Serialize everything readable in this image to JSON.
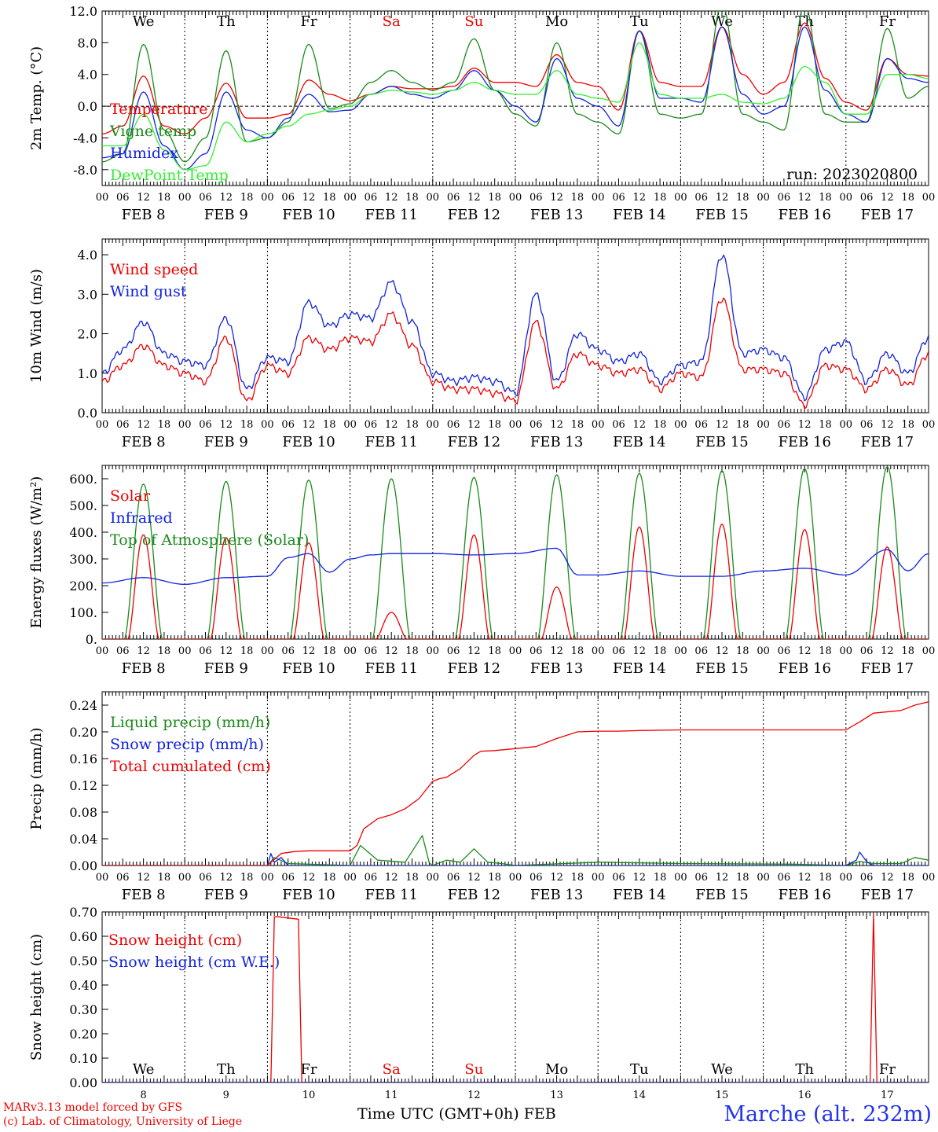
{
  "footer": {
    "credit_line1": "MARv3.13 model forced by GFS",
    "credit_line2": "(c) Lab. of Climatology, University of Liege",
    "xlabel": "Time UTC (GMT+0h) FEB",
    "station": "Marche (alt. 232m)"
  },
  "run_label": "run: 2023020800",
  "day_names": [
    "We",
    "Th",
    "Fr",
    "Sa",
    "Su",
    "Mo",
    "Tu",
    "We",
    "Th",
    "Fr"
  ],
  "day_colors": [
    "#000000",
    "#000000",
    "#000000",
    "#ee0000",
    "#ee0000",
    "#000000",
    "#000000",
    "#000000",
    "#000000",
    "#000000"
  ],
  "date_labels": [
    "FEB  8",
    "FEB  9",
    "FEB 10",
    "FEB 11",
    "FEB 12",
    "FEB 13",
    "FEB 14",
    "FEB 15",
    "FEB 16",
    "FEB 17"
  ],
  "bottom_day_numbers": [
    "8",
    "9",
    "10",
    "11",
    "12",
    "13",
    "14",
    "15",
    "16",
    "17"
  ],
  "hour_ticks": [
    "00",
    "06",
    "12",
    "18"
  ],
  "colors": {
    "red": "#ee0000",
    "darkgreen": "#1a8a1a",
    "blue": "#1122dd",
    "lightgreen": "#33ee33"
  },
  "chart_data": [
    {
      "type": "line",
      "ylabel": "2m Temp. (°C)",
      "ylim": [
        -10,
        12
      ],
      "yticks": [
        "12.0",
        "8.0",
        "4.0",
        "0.0",
        "-4.0",
        "-8.0"
      ],
      "ytick_values": [
        12,
        8,
        4,
        0,
        -4,
        -8
      ],
      "x_hours": [
        0,
        6,
        12,
        18,
        24,
        30,
        36,
        42,
        48,
        54,
        60,
        66,
        72,
        78,
        84,
        90,
        96,
        102,
        108,
        114,
        120,
        126,
        132,
        138,
        144,
        150,
        156,
        162,
        168,
        174,
        180,
        186,
        192,
        198,
        204,
        210,
        216,
        222,
        228,
        234,
        240
      ],
      "series": [
        {
          "name": "Temperature",
          "color": "#ee0000",
          "values": [
            -3.5,
            -2.5,
            3.8,
            -2.5,
            -3.5,
            -1.5,
            2.9,
            -1.5,
            -1.5,
            -1,
            3.3,
            1.5,
            0.7,
            1.5,
            2.5,
            2.2,
            2.2,
            2.5,
            4.8,
            3,
            3,
            2.5,
            6.5,
            3,
            2.5,
            -0.5,
            9.5,
            3,
            2.5,
            2.5,
            10,
            4,
            1.5,
            3,
            10.5,
            3.5,
            0.5,
            -0.5,
            6,
            4,
            3.8
          ]
        },
        {
          "name": "Vigne temp",
          "color": "#1a8a1a",
          "values": [
            -7,
            -6,
            7.8,
            -3,
            -7,
            -4,
            7,
            -4.5,
            -4,
            -2,
            7.8,
            -0.3,
            0.3,
            3,
            4.5,
            3,
            2,
            3,
            8.5,
            2,
            -1,
            -2.5,
            8,
            -1,
            -2,
            -3.5,
            9.5,
            -1,
            -1.5,
            -1,
            13,
            -1,
            -2,
            -3,
            13,
            -1,
            -2,
            -2,
            9.8,
            1,
            2.5
          ]
        },
        {
          "name": "Humidex",
          "color": "#1122dd",
          "values": [
            -6.5,
            -6,
            1.8,
            -5,
            -8,
            -6,
            1.8,
            -3,
            -4,
            -1.5,
            1.5,
            -0.7,
            -0.5,
            1.5,
            2.5,
            1.5,
            1,
            2,
            4.5,
            2,
            0,
            -2,
            6,
            1,
            0,
            -2.5,
            9.5,
            1,
            1,
            0.5,
            10,
            1.5,
            -1,
            0,
            10,
            2,
            -1,
            -2,
            6,
            3.5,
            3
          ]
        },
        {
          "name": "DewPoint Temp",
          "color": "#33ee33",
          "values": [
            -5,
            -5,
            -1,
            -5.5,
            -8,
            -7.5,
            -2,
            -4.5,
            -3.5,
            -2.5,
            -1,
            -0.5,
            0,
            1.5,
            2,
            1.8,
            1.5,
            2,
            3,
            2,
            1.5,
            1.5,
            4.5,
            1.5,
            1,
            0.5,
            8,
            1.5,
            1,
            1,
            1.5,
            0.5,
            0.3,
            1,
            5,
            3,
            -1,
            -1,
            4,
            4,
            3.5
          ]
        }
      ]
    },
    {
      "type": "line",
      "ylabel": "10m Wind (m/s)",
      "ylim": [
        0,
        4.4
      ],
      "yticks": [
        "4.0",
        "3.0",
        "2.0",
        "1.0",
        "0.0"
      ],
      "ytick_values": [
        4,
        3,
        2,
        1,
        0
      ],
      "x_hours": [
        0,
        6,
        12,
        18,
        24,
        30,
        36,
        42,
        48,
        54,
        60,
        66,
        72,
        78,
        84,
        90,
        96,
        102,
        108,
        114,
        120,
        126,
        132,
        138,
        144,
        150,
        156,
        162,
        168,
        174,
        180,
        186,
        192,
        198,
        204,
        210,
        216,
        222,
        228,
        234,
        240
      ],
      "series": [
        {
          "name": "Wind speed",
          "color": "#ee0000",
          "values": [
            0.8,
            1.2,
            1.7,
            1.2,
            1,
            0.8,
            1.9,
            0.3,
            1.2,
            1,
            1.9,
            1.6,
            1.9,
            1.8,
            2.5,
            1.7,
            0.8,
            0.6,
            0.6,
            0.5,
            0.3,
            2.3,
            0.6,
            1.5,
            1.2,
            1,
            1.1,
            0.6,
            1.0,
            0.9,
            2.9,
            1.1,
            1.1,
            1.0,
            0.2,
            1.2,
            1.1,
            0.6,
            1.1,
            0.7,
            1.5
          ]
        },
        {
          "name": "Wind gust",
          "color": "#1122dd",
          "values": [
            1.0,
            1.6,
            2.3,
            1.5,
            1.3,
            1.2,
            2.4,
            0.6,
            1.4,
            1.3,
            2.8,
            2.2,
            2.5,
            2.4,
            3.3,
            2.3,
            1.0,
            0.8,
            0.9,
            0.8,
            0.5,
            3.0,
            0.8,
            2.0,
            1.6,
            1.3,
            1.5,
            0.8,
            1.2,
            1.3,
            4.0,
            1.5,
            1.6,
            1.4,
            0.4,
            1.6,
            1.8,
            0.8,
            1.5,
            1.0,
            1.9
          ]
        }
      ]
    },
    {
      "type": "line",
      "ylabel": "Energy fluxes (W/m²)",
      "ylim": [
        0,
        650
      ],
      "yticks": [
        "600.",
        "500.",
        "400.",
        "300.",
        "200.",
        "100.",
        "0."
      ],
      "ytick_values": [
        600,
        500,
        400,
        300,
        200,
        100,
        0
      ],
      "day_peaks": {
        "solar": [
          390,
          380,
          360,
          100,
          390,
          195,
          420,
          430,
          410,
          345
        ],
        "toa": [
          580,
          590,
          595,
          600,
          605,
          615,
          620,
          630,
          638,
          645
        ]
      },
      "series": [
        {
          "name": "Solar",
          "color": "#ee0000"
        },
        {
          "name": "Infrared",
          "color": "#1122dd",
          "x_hours": [
            0,
            12,
            24,
            36,
            48,
            54,
            60,
            66,
            72,
            78,
            84,
            96,
            108,
            120,
            132,
            138,
            144,
            156,
            168,
            180,
            192,
            204,
            216,
            228,
            234,
            240
          ],
          "values": [
            210,
            230,
            205,
            230,
            235,
            305,
            320,
            250,
            300,
            315,
            320,
            320,
            315,
            320,
            340,
            240,
            240,
            255,
            235,
            235,
            255,
            265,
            240,
            335,
            255,
            320
          ]
        },
        {
          "name": "Top of Atmosphere (Solar)",
          "color": "#1a8a1a"
        }
      ]
    },
    {
      "type": "line",
      "ylabel": "Precip (mm/h)",
      "ylim": [
        0,
        0.26
      ],
      "yticks": [
        "0.24",
        "0.20",
        "0.16",
        "0.12",
        "0.08",
        "0.04",
        "0.00"
      ],
      "ytick_values": [
        0.24,
        0.2,
        0.16,
        0.12,
        0.08,
        0.04,
        0
      ],
      "series": [
        {
          "name": "Liquid precip (mm/h)",
          "color": "#1a8a1a",
          "x_hours": [
            0,
            48,
            50,
            54,
            72,
            75,
            80,
            88,
            93,
            95,
            96,
            100,
            104,
            108,
            112,
            116,
            120,
            144,
            168,
            200,
            216,
            220,
            224,
            232,
            236,
            240
          ],
          "values": [
            0,
            0,
            0.012,
            0.003,
            0,
            0.03,
            0.008,
            0.005,
            0.045,
            0.004,
            0,
            0.008,
            0.005,
            0.025,
            0.005,
            0.003,
            0,
            0.005,
            0.003,
            0.002,
            0,
            0.006,
            0.003,
            0.003,
            0.012,
            0.008
          ]
        },
        {
          "name": "Snow precip (mm/h)",
          "color": "#1122dd",
          "x_hours": [
            0,
            48,
            49,
            50,
            52,
            54,
            216,
            219,
            220,
            222,
            224,
            240
          ],
          "values": [
            0,
            0,
            0.018,
            0.005,
            0.012,
            0,
            0,
            0.008,
            0.02,
            0.006,
            0,
            0
          ]
        },
        {
          "name": "Total cumulated (cm)",
          "color": "#ee0000",
          "x_hours": [
            0,
            48,
            52,
            56,
            60,
            66,
            72,
            74,
            76,
            80,
            84,
            88,
            92,
            96,
            98,
            100,
            104,
            108,
            110,
            114,
            120,
            126,
            132,
            138,
            144,
            150,
            156,
            168,
            180,
            192,
            204,
            216,
            220,
            224,
            232,
            236,
            240
          ],
          "values": [
            0,
            0,
            0.018,
            0.021,
            0.022,
            0.022,
            0.022,
            0.03,
            0.055,
            0.07,
            0.076,
            0.085,
            0.1,
            0.126,
            0.13,
            0.132,
            0.145,
            0.165,
            0.171,
            0.172,
            0.175,
            0.178,
            0.19,
            0.2,
            0.201,
            0.201,
            0.202,
            0.203,
            0.203,
            0.203,
            0.203,
            0.203,
            0.215,
            0.228,
            0.232,
            0.24,
            0.245
          ]
        }
      ]
    },
    {
      "type": "line",
      "ylabel": "Snow height (cm)",
      "ylim": [
        0,
        0.7
      ],
      "yticks": [
        "0.70",
        "0.60",
        "0.50",
        "0.40",
        "0.30",
        "0.20",
        "0.10",
        "0.00"
      ],
      "ytick_values": [
        0.7,
        0.6,
        0.5,
        0.4,
        0.3,
        0.2,
        0.1,
        0
      ],
      "series": [
        {
          "name": "Snow height (cm)",
          "color": "#ee0000",
          "x_hours": [
            0,
            49,
            50,
            51,
            57,
            58,
            223,
            224,
            225,
            240
          ],
          "values": [
            0,
            0,
            0.68,
            0.68,
            0.67,
            0,
            0,
            0.69,
            0,
            0
          ]
        },
        {
          "name": "Snow height (cm W.E.)",
          "color": "#1122dd",
          "x_hours": [
            0,
            240
          ],
          "values": [
            0,
            0
          ]
        }
      ]
    }
  ]
}
